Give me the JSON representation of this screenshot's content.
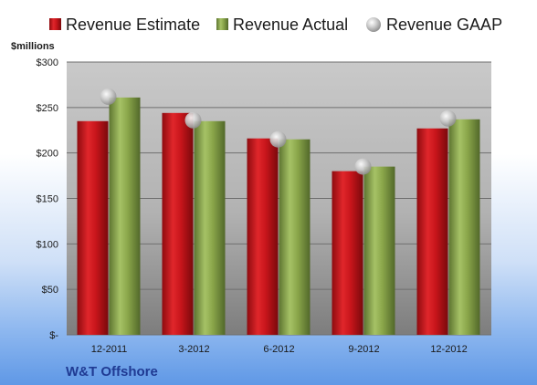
{
  "chart_data": {
    "type": "bar",
    "categories": [
      "12-2011",
      "3-2012",
      "6-2012",
      "9-2012",
      "12-2012"
    ],
    "series": [
      {
        "name": "Revenue Estimate",
        "type": "bar",
        "color": "#c8151b",
        "values": [
          235,
          244,
          216,
          180,
          227
        ]
      },
      {
        "name": "Revenue Actual",
        "type": "bar",
        "color": "#8aa64a",
        "values": [
          261,
          235,
          215,
          185,
          237
        ]
      },
      {
        "name": "Revenue GAAP",
        "type": "marker",
        "color": "#b8b8b8",
        "values": [
          262,
          236,
          215,
          185,
          238
        ]
      }
    ],
    "ylabel": "$millions",
    "ylim": [
      0,
      300
    ],
    "y_ticks": [
      {
        "value": 0,
        "label": "$-"
      },
      {
        "value": 50,
        "label": "$50"
      },
      {
        "value": 100,
        "label": "$100"
      },
      {
        "value": 150,
        "label": "$150"
      },
      {
        "value": 200,
        "label": "$200"
      },
      {
        "value": 250,
        "label": "$250"
      },
      {
        "value": 300,
        "label": "$300"
      }
    ],
    "grid": true,
    "legend_position": "top",
    "company": "W&T Offshore"
  }
}
